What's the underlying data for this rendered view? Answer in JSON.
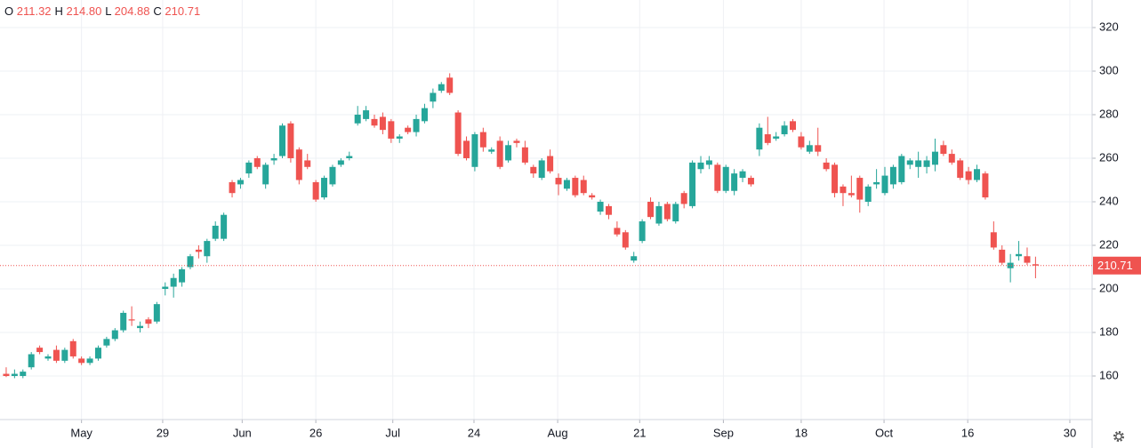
{
  "chart_data": {
    "type": "candlestick",
    "header": [
      {
        "name": "O",
        "value": "211.32"
      },
      {
        "name": "H",
        "value": "214.80"
      },
      {
        "name": "L",
        "value": "204.88"
      },
      {
        "name": "C",
        "value": "210.71"
      }
    ],
    "up_color": "#26a69a",
    "down_color": "#ef5350",
    "open": [
      161,
      160,
      160,
      164,
      173,
      168,
      172,
      167,
      176,
      168,
      166,
      168,
      174,
      177,
      181,
      186,
      182,
      186,
      185,
      200,
      201,
      203,
      210,
      218,
      215,
      223,
      223,
      249,
      248,
      253,
      260,
      248,
      259,
      261,
      276,
      264,
      259,
      249,
      242,
      248,
      257,
      260,
      276,
      278,
      278,
      279,
      277,
      269,
      274,
      272,
      277,
      286,
      291,
      297,
      281,
      268,
      256,
      272,
      263,
      268,
      259,
      268,
      265,
      256,
      251,
      261,
      251,
      246,
      251,
      250,
      243,
      235.5,
      238,
      228,
      226,
      213,
      222,
      240,
      230,
      239,
      231,
      244,
      238,
      255,
      257,
      257,
      245,
      245,
      251,
      251,
      264,
      271,
      269,
      271,
      277,
      270,
      263,
      266,
      258,
      257,
      247,
      244,
      251,
      240,
      248,
      244,
      248,
      249,
      257,
      256,
      256,
      257,
      266,
      262,
      259,
      254,
      250,
      253,
      226,
      218,
      209.5,
      215,
      215,
      211.32
    ],
    "high": [
      164,
      163,
      163,
      171,
      174,
      170,
      174,
      173,
      177,
      169,
      169,
      174,
      178,
      182,
      190,
      192,
      185,
      187,
      194,
      203,
      207,
      210,
      216,
      220,
      223,
      231,
      235,
      250,
      251,
      259,
      261,
      258,
      262,
      276,
      277,
      265,
      262,
      250,
      252,
      257,
      260,
      263,
      284,
      284,
      280,
      281,
      278,
      271,
      275,
      280,
      285,
      292,
      295,
      299,
      282,
      270,
      272,
      274,
      265,
      270,
      268,
      269,
      268,
      257,
      260,
      264,
      253,
      251,
      252,
      252,
      244,
      241,
      239,
      231,
      227,
      217,
      232,
      242,
      240,
      240,
      240,
      245,
      259,
      261,
      261,
      258,
      257,
      255,
      255,
      252,
      276,
      279,
      272,
      277,
      278,
      272,
      268,
      274,
      260,
      258,
      248,
      252,
      252,
      248,
      255,
      256,
      257,
      262,
      260,
      263,
      261,
      269,
      268,
      264,
      260,
      256,
      257,
      254,
      231,
      220,
      216,
      222,
      219,
      214.8
    ],
    "low": [
      159.5,
      159,
      159,
      163,
      170,
      167,
      166,
      166,
      168,
      165,
      165,
      167,
      173,
      176,
      180,
      183,
      180,
      182,
      184,
      197,
      196,
      201,
      209,
      214,
      212,
      222,
      222,
      242,
      246,
      251,
      255,
      246,
      257,
      260,
      258,
      248,
      255,
      240,
      241,
      247,
      256,
      259,
      275,
      277,
      274,
      271,
      267,
      267,
      271,
      270,
      276,
      283,
      290,
      289,
      261,
      259,
      254,
      263,
      262,
      255,
      258,
      265,
      257,
      251,
      250,
      253,
      243,
      245,
      242,
      243,
      241,
      234,
      232,
      224,
      218,
      212,
      221,
      232,
      229,
      231,
      230,
      237,
      237,
      253,
      255,
      244,
      244,
      243,
      249,
      247,
      261,
      266,
      268,
      270,
      272,
      264,
      262,
      261,
      254,
      242,
      238,
      242,
      235,
      238,
      246,
      243,
      246,
      248,
      255,
      251,
      253,
      254,
      261,
      257,
      250,
      248,
      249,
      241,
      218,
      211,
      203,
      213,
      211,
      204.88
    ],
    "close": [
      160,
      161,
      162,
      170,
      171,
      169,
      167,
      172,
      169,
      166,
      168,
      173,
      177,
      181,
      189,
      185.5,
      183,
      184,
      193,
      201,
      205,
      209,
      215,
      217,
      222,
      229,
      234,
      244,
      250,
      258,
      256,
      257,
      260,
      275,
      260,
      250,
      256,
      241,
      251,
      256,
      259,
      261,
      280,
      282,
      275,
      273,
      269,
      270,
      272,
      278,
      283,
      290,
      294,
      290,
      262,
      260,
      271,
      265,
      264,
      256,
      266,
      267,
      258,
      253,
      259,
      254,
      248,
      250,
      243,
      244,
      242,
      240,
      234,
      225,
      219,
      215,
      231,
      233,
      238,
      232,
      239,
      239,
      258,
      258,
      259,
      245,
      256,
      253,
      254,
      248,
      274,
      267,
      270,
      275,
      273,
      265,
      266,
      263,
      255,
      244,
      244,
      243,
      241,
      247,
      249,
      252,
      256,
      261,
      259,
      259,
      259,
      263,
      262,
      258,
      251,
      250,
      255,
      242,
      219,
      212,
      212,
      216,
      212,
      210.71
    ],
    "xlim": [
      -0.74,
      129.76
    ],
    "xticks": [
      {
        "value": 9.0,
        "label": "May"
      },
      {
        "value": 18.7,
        "label": "29"
      },
      {
        "value": 28.2,
        "label": "Jun"
      },
      {
        "value": 37.0,
        "label": "26"
      },
      {
        "value": 46.2,
        "label": "Jul"
      },
      {
        "value": 55.9,
        "label": "24"
      },
      {
        "value": 65.9,
        "label": "Aug"
      },
      {
        "value": 75.7,
        "label": "21"
      },
      {
        "value": 85.7,
        "label": "Sep"
      },
      {
        "value": 95.0,
        "label": "18"
      },
      {
        "value": 104.9,
        "label": "Oct"
      },
      {
        "value": 114.9,
        "label": "16"
      },
      {
        "value": 127.1,
        "label": "30"
      }
    ],
    "ylim": [
      140,
      332.65
    ],
    "yticks": [
      160,
      180,
      200,
      220,
      240,
      260,
      280,
      300,
      320
    ],
    "grid": true
  }
}
